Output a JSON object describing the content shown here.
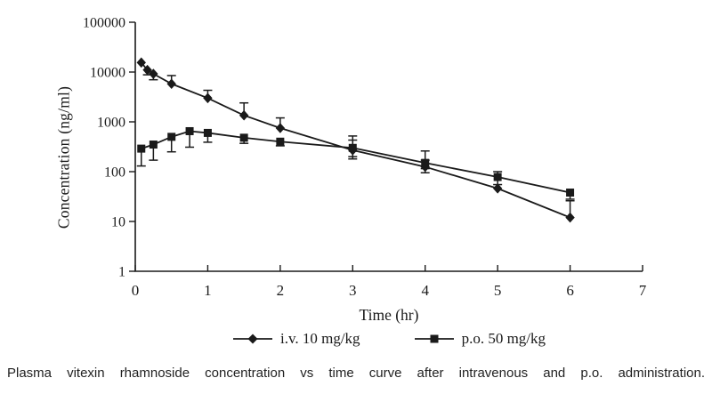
{
  "figure": {
    "caption": "Plasma vitexin rhamnoside concentration vs time curve after intravenous and p.o. administration."
  },
  "chart_data": {
    "type": "line",
    "title": "",
    "grid": false,
    "legend_position": "bottom",
    "ink_color": "#1a1a1a",
    "x_axis": {
      "label": "Time (hr)",
      "min": 0,
      "max": 7,
      "ticks": [
        0,
        1,
        2,
        3,
        4,
        5,
        6,
        7
      ]
    },
    "y_axis": {
      "label": "Concentration (ng/ml)",
      "scale": "log",
      "min": 1,
      "max": 100000,
      "ticks": [
        1,
        10,
        100,
        1000,
        10000,
        100000
      ]
    },
    "series": [
      {
        "name": "i.v. 10 mg/kg",
        "marker": "diamond",
        "color": "#1a1a1a",
        "points": [
          {
            "t": 0.083,
            "c": 15500,
            "lo": null,
            "hi": null
          },
          {
            "t": 0.167,
            "c": 11000,
            "lo": 8800,
            "hi": null
          },
          {
            "t": 0.25,
            "c": 9200,
            "lo": 7000,
            "hi": null
          },
          {
            "t": 0.5,
            "c": 5800,
            "lo": null,
            "hi": 8500
          },
          {
            "t": 1,
            "c": 3000,
            "lo": null,
            "hi": 4300
          },
          {
            "t": 1.5,
            "c": 1350,
            "lo": null,
            "hi": 2400
          },
          {
            "t": 2,
            "c": 750,
            "lo": null,
            "hi": 1200
          },
          {
            "t": 3,
            "c": 270,
            "lo": 180,
            "hi": 430
          },
          {
            "t": 4,
            "c": 125,
            "lo": 95,
            "hi": 170
          },
          {
            "t": 5,
            "c": 46,
            "lo": null,
            "hi": null
          },
          {
            "t": 6,
            "c": 12,
            "lo": null,
            "hi": 26
          }
        ]
      },
      {
        "name": "p.o. 50 mg/kg",
        "marker": "square",
        "color": "#1a1a1a",
        "points": [
          {
            "t": 0.083,
            "c": 290,
            "lo": 130,
            "hi": null
          },
          {
            "t": 0.25,
            "c": 350,
            "lo": 170,
            "hi": null
          },
          {
            "t": 0.5,
            "c": 500,
            "lo": 250,
            "hi": null
          },
          {
            "t": 0.75,
            "c": 650,
            "lo": 310,
            "hi": null
          },
          {
            "t": 1,
            "c": 600,
            "lo": 390,
            "hi": null
          },
          {
            "t": 1.5,
            "c": 480,
            "lo": 370,
            "hi": null
          },
          {
            "t": 2,
            "c": 400,
            "lo": 330,
            "hi": null
          },
          {
            "t": 3,
            "c": 300,
            "lo": 200,
            "hi": 520
          },
          {
            "t": 4,
            "c": 150,
            "lo": 115,
            "hi": 260
          },
          {
            "t": 5,
            "c": 78,
            "lo": 55,
            "hi": 100
          },
          {
            "t": 6,
            "c": 38,
            "lo": 28,
            "hi": null
          }
        ]
      }
    ]
  }
}
